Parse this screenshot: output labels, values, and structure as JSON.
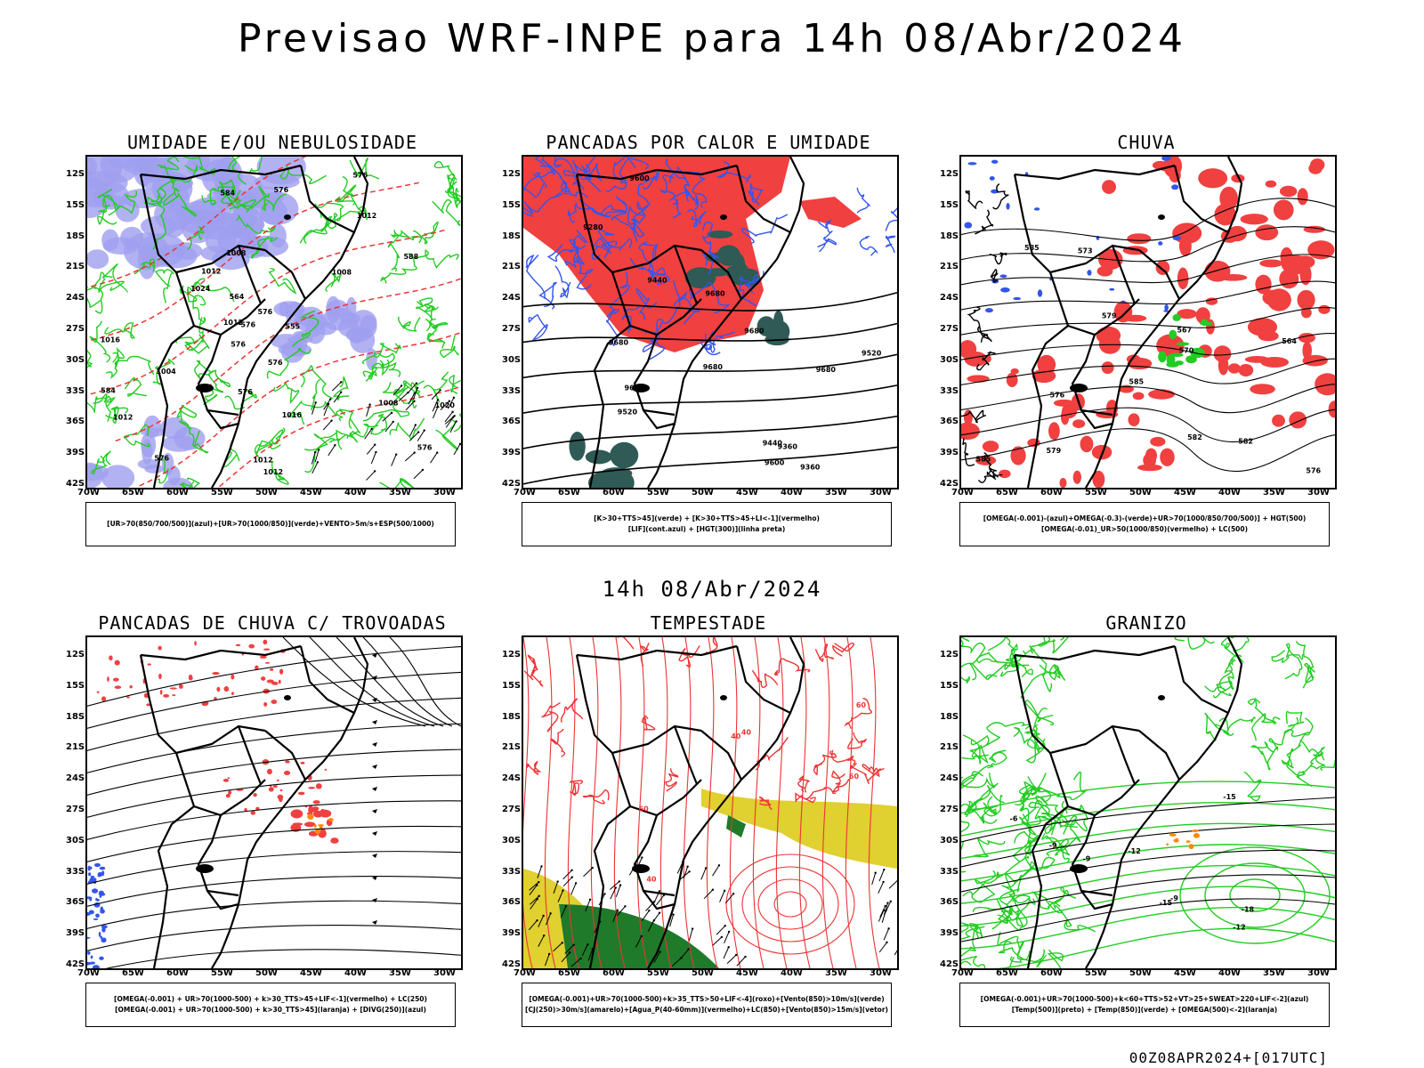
{
  "header": {
    "title": "Previsao WRF-INPE  para 14h 08/Abr/2024"
  },
  "mid_date": "14h 08/Abr/2024",
  "footer_stamp": "00Z08APR2024+[017UTC]",
  "axes": {
    "y_ticks": [
      "12S",
      "15S",
      "18S",
      "21S",
      "24S",
      "27S",
      "30S",
      "33S",
      "36S",
      "39S",
      "42S"
    ],
    "x_ticks": [
      "70W",
      "65W",
      "60W",
      "55W",
      "50W",
      "45W",
      "40W",
      "35W",
      "30W"
    ]
  },
  "panels": [
    {
      "title": "UMIDADE E/OU NEBULOSIDADE",
      "legend": [
        "[UR>70(850/700/500)](azul)+[UR>70(1000/850)](verde)+VENTO>5m/s+ESP(500/1000)"
      ],
      "contour_labels": [
        "1012",
        "1012",
        "1012",
        "1012",
        "1016",
        "1016",
        "1012",
        "1008",
        "1008",
        "1012",
        "1008",
        "1004",
        "1020",
        "1024",
        "576",
        "576",
        "576",
        "576",
        "576",
        "576",
        "576",
        "576",
        "576",
        "564",
        "555",
        "584",
        "584",
        "588"
      ]
    },
    {
      "title": "PANCADAS POR CALOR E UMIDADE",
      "legend": [
        "[K>30+TTS>45](verde) + [K>30+TTS>45+LI<-1](vermelho)",
        "[LIF](cont.azul) + [HGT(300)](linha preta)"
      ],
      "contour_labels": [
        "9680",
        "9680",
        "9680",
        "9680",
        "9680",
        "9600",
        "9600",
        "9600",
        "9520",
        "9520",
        "9440",
        "9440",
        "9360",
        "9360",
        "9280"
      ]
    },
    {
      "title": "CHUVA",
      "legend": [
        "[OMEGA(-0.001)-(azul)+OMEGA(-0.3)-(verde)+UR>70(1000/850/700/500)] + HGT(500)",
        "[OMEGA(-0.01)_UR>50(1000/850)(vermelho) + LC(500)"
      ],
      "contour_labels": [
        "585",
        "585",
        "585",
        "582",
        "582",
        "579",
        "579",
        "576",
        "576",
        "573",
        "570",
        "567",
        "564"
      ]
    },
    {
      "title": "PANCADAS DE CHUVA C/ TROVOADAS",
      "legend": [
        "[OMEGA(-0.001) + UR>70(1000-500) + k>30_TTS>45+LIF<-1](vermelho) + LC(250)",
        "[OMEGA(-0.001) + UR>70(1000-500) + k>30_TTS>45](laranja) + [DIVG(250)](azul)"
      ],
      "contour_labels": []
    },
    {
      "title": "TEMPESTADE",
      "legend": [
        "[OMEGA(-0.001)+UR>70(1000-500)+k>35_TTS>50+LIF<-4](roxo)+[Vento(850)>10m/s](verde)",
        "[CJ(250)>30m/s](amarelo)+[Agua_P(40-60mm)](vermelho)+LC(850)+[Vento(850)>15m/s](vetor)"
      ],
      "contour_labels": [
        "40",
        "40",
        "40",
        "60",
        "60",
        "60"
      ]
    },
    {
      "title": "GRANIZO",
      "legend": [
        "[OMEGA(-0.001)+UR>70(1000-500)+k<60+TTS>52+VT>25+SWEAT>220+LIF<-2](azul)",
        "[Temp(500)](preto) + [Temp(850)](verde) + [OMEGA(500)<-2](laranja)"
      ],
      "contour_labels": [
        "-9",
        "-9",
        "-12",
        "-12",
        "-15",
        "-15",
        "-18",
        "-6",
        "-9"
      ]
    }
  ],
  "colors": {
    "purple_fill": "#9f9ff0",
    "green_line": "#22cc22",
    "red_dash": "#ee3333",
    "red_fill": "#f04040",
    "dark_teal": "#2f5a55",
    "blue_line": "#3355ee",
    "yellow_fill": "#e0d030",
    "dark_green_fill": "#1f7a2a",
    "orange": "#ff8800"
  }
}
